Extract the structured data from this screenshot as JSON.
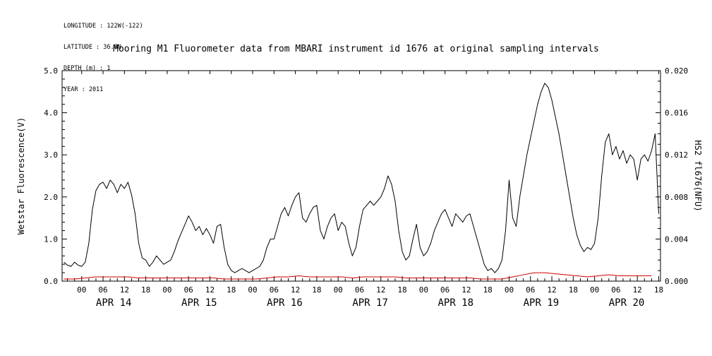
{
  "header": {
    "longitude": "LONGITUDE : 122W(-122)",
    "latitude": "LATITUDE : 36.8N",
    "depth": "DEPTH (m) : 1",
    "year": "YEAR : 2011"
  },
  "title": "Mooring M1 Fluorometer data from MBARI instrument id 1676 at original sampling intervals",
  "chart_data": {
    "type": "line",
    "title": "Mooring M1 Fluorometer data from MBARI instrument id 1676 at original sampling intervals",
    "x_unit": "hours since 2011-04-14 00:00",
    "x_range": [
      -5.5,
      162.5
    ],
    "grid": false,
    "legend": "none",
    "left_axis": {
      "label": "Wetstar Fluorescence(V)",
      "range": [
        0,
        5
      ],
      "tick_values": [
        0,
        1,
        2,
        3,
        4,
        5
      ],
      "tick_labels": [
        "0.0",
        "1.0",
        "2.0",
        "3.0",
        "4.0",
        "5.0"
      ],
      "minor_step": 0.2,
      "color": "#000000"
    },
    "right_axis": {
      "label": "HS2 fl676(NFU)",
      "range": [
        0,
        0.02
      ],
      "tick_values": [
        0,
        0.004,
        0.008,
        0.012,
        0.016,
        0.02
      ],
      "tick_labels": [
        "0.000",
        "0.004",
        "0.008",
        "0.012",
        "0.016",
        "0.020"
      ],
      "minor_step": 0.001,
      "color": "#cc0000"
    },
    "x_axis": {
      "major_tick_start": 0,
      "major_tick_step": 6,
      "major_tick_count": 28,
      "minor_step": 2,
      "hour_labels": [
        "00",
        "06",
        "12",
        "18"
      ],
      "day_labels": [
        {
          "label": "APR 14",
          "hour": 9
        },
        {
          "label": "APR 15",
          "hour": 33
        },
        {
          "label": "APR 16",
          "hour": 57
        },
        {
          "label": "APR 17",
          "hour": 81
        },
        {
          "label": "APR 18",
          "hour": 105
        },
        {
          "label": "APR 19",
          "hour": 129
        },
        {
          "label": "APR 20",
          "hour": 153
        }
      ]
    },
    "series": [
      {
        "name": "Wetstar Fluorescence(V)",
        "axis": "left",
        "color": "#000000",
        "data_name": "wetstar-series-line",
        "x_start": -5,
        "x_step": 1,
        "values": [
          0.45,
          0.38,
          0.35,
          0.45,
          0.38,
          0.35,
          0.45,
          0.9,
          1.7,
          2.15,
          2.3,
          2.35,
          2.2,
          2.4,
          2.3,
          2.1,
          2.3,
          2.2,
          2.35,
          2.05,
          1.6,
          0.9,
          0.55,
          0.5,
          0.35,
          0.45,
          0.6,
          0.5,
          0.4,
          0.45,
          0.5,
          0.7,
          0.95,
          1.15,
          1.35,
          1.55,
          1.4,
          1.2,
          1.3,
          1.1,
          1.25,
          1.1,
          0.9,
          1.3,
          1.35,
          0.8,
          0.4,
          0.25,
          0.2,
          0.25,
          0.3,
          0.25,
          0.2,
          0.25,
          0.3,
          0.35,
          0.5,
          0.8,
          1.0,
          1.0,
          1.3,
          1.6,
          1.75,
          1.55,
          1.8,
          2.0,
          2.1,
          1.5,
          1.4,
          1.6,
          1.75,
          1.8,
          1.2,
          1.0,
          1.3,
          1.5,
          1.6,
          1.2,
          1.4,
          1.3,
          0.9,
          0.6,
          0.8,
          1.3,
          1.7,
          1.8,
          1.9,
          1.8,
          1.9,
          2.0,
          2.2,
          2.5,
          2.3,
          1.9,
          1.2,
          0.7,
          0.5,
          0.6,
          1.0,
          1.35,
          0.8,
          0.6,
          0.7,
          0.9,
          1.2,
          1.4,
          1.6,
          1.7,
          1.5,
          1.3,
          1.6,
          1.5,
          1.4,
          1.55,
          1.6,
          1.3,
          1.0,
          0.7,
          0.4,
          0.25,
          0.3,
          0.2,
          0.3,
          0.5,
          1.2,
          2.4,
          1.5,
          1.3,
          2.0,
          2.5,
          3.0,
          3.4,
          3.8,
          4.2,
          4.5,
          4.7,
          4.6,
          4.3,
          3.9,
          3.5,
          3.0,
          2.5,
          2.0,
          1.5,
          1.1,
          0.85,
          0.7,
          0.8,
          0.75,
          0.9,
          1.5,
          2.5,
          3.3,
          3.5,
          3.0,
          3.2,
          2.9,
          3.1,
          2.8,
          3.0,
          2.9,
          2.4,
          2.9,
          3.0,
          2.85,
          3.1,
          3.5,
          1.6
        ]
      },
      {
        "name": "HS2 fl676(NFU)",
        "axis": "right",
        "color": "#cc0000",
        "data_name": "hs2-series-line",
        "x_start": -5,
        "x_step": 3,
        "values": [
          0.0002,
          0.0002,
          0.0003,
          0.0004,
          0.0004,
          0.0004,
          0.0004,
          0.0003,
          0.0003,
          0.0003,
          0.0003,
          0.0003,
          0.0003,
          0.0003,
          0.0003,
          0.0002,
          0.0002,
          0.0002,
          0.0002,
          0.0003,
          0.0004,
          0.0004,
          0.0005,
          0.0004,
          0.0004,
          0.0004,
          0.0004,
          0.0003,
          0.0004,
          0.0004,
          0.0004,
          0.0004,
          0.0003,
          0.0003,
          0.0003,
          0.0003,
          0.0003,
          0.0003,
          0.0003,
          0.0002,
          0.0002,
          0.0002,
          0.0004,
          0.0006,
          0.0008,
          0.0008,
          0.0007,
          0.0006,
          0.0005,
          0.0004,
          0.0005,
          0.0006,
          0.0005,
          0.0005,
          0.0005,
          0.0005
        ]
      }
    ]
  }
}
